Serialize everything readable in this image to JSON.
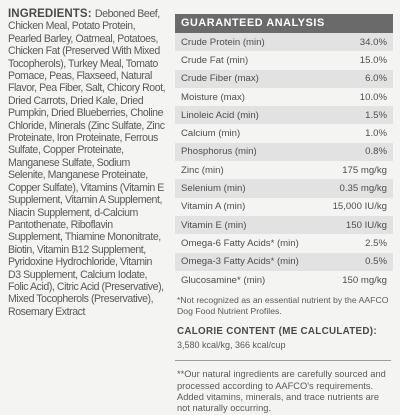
{
  "ingredients": {
    "heading": "INGREDIENTS:",
    "text": "Deboned Beef, Chicken Meal, Potato Protein, Pearled Barley, Oatmeal, Potatoes, Chicken Fat (Preserved With Mixed Tocopherols), Turkey Meal, Tomato Pomace, Peas, Flaxseed, Natural Flavor, Pea Fiber, Salt, Chicory Root, Dried Carrots, Dried Kale, Dried Pumpkin, Dried Blueberries, Choline Chloride, Minerals (Zinc Sulfate, Zinc Proteinate, Iron Proteinate, Ferrous Sulfate, Copper Proteinate, Manganese Sulfate, Sodium Selenite, Manganese Proteinate, Copper Sulfate), Vitamins (Vitamin E Supplement, Vitamin A Supplement, Niacin Supplement, d-Calcium Pantothenate, Riboflavin Supplement, Thiamine Mononitrate, Biotin, Vitamin B12 Supplement, Pyridoxine Hydrochloride, Vitamin D3 Supplement, Calcium Iodate, Folic Acid), Citric Acid (Preservative), Mixed Tocopherols (Preservative), Rosemary Extract"
  },
  "analysis": {
    "title": "GUARANTEED ANALYSIS",
    "rows": [
      {
        "label": "Crude Protein (min)",
        "value": "34.0%"
      },
      {
        "label": "Crude Fat (min)",
        "value": "15.0%"
      },
      {
        "label": "Crude Fiber (max)",
        "value": "6.0%"
      },
      {
        "label": "Moisture (max)",
        "value": "10.0%"
      },
      {
        "label": "Linoleic Acid (min)",
        "value": "1.5%"
      },
      {
        "label": "Calcium (min)",
        "value": "1.0%"
      },
      {
        "label": "Phosphorus (min)",
        "value": "0.8%"
      },
      {
        "label": "Zinc (min)",
        "value": "175 mg/kg"
      },
      {
        "label": "Selenium (min)",
        "value": "0.35 mg/kg"
      },
      {
        "label": "Vitamin A (min)",
        "value": "15,000 IU/kg"
      },
      {
        "label": "Vitamin E (min)",
        "value": "150 IU/kg"
      },
      {
        "label": "Omega-6 Fatty Acids* (min)",
        "value": "2.5%"
      },
      {
        "label": "Omega-3 Fatty Acids* (min)",
        "value": "0.5%"
      },
      {
        "label": "Glucosamine* (min)",
        "value": "150 mg/kg"
      }
    ],
    "footnote": "*Not recognized as an essential nutrient by the AAFCO Dog Food Nutrient Profiles."
  },
  "calorie": {
    "title": "CALORIE CONTENT (ME CALCULATED):",
    "value": "3,580 kcal/kg, 366 kcal/cup"
  },
  "natural_note": "**Our natural ingredients are carefully sourced and processed according to AAFCO's requirements. Added vitamins, minerals, and trace nutrients are not naturally occurring."
}
